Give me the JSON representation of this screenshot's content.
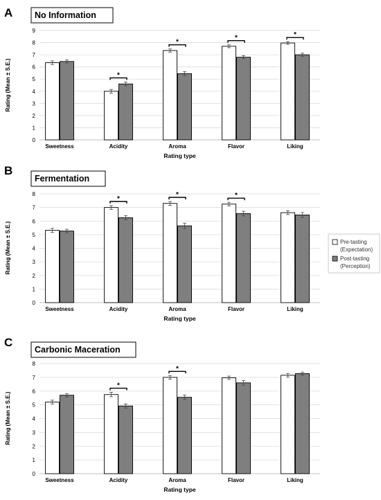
{
  "legend": {
    "items": [
      {
        "label_line1": "Pre-tasting",
        "label_line2": "(Expectation)",
        "color": "#ffffff"
      },
      {
        "label_line1": "Post-tasting",
        "label_line2": "(Perception)",
        "color": "#7f7f7f"
      }
    ]
  },
  "chart_data": [
    {
      "type": "bar",
      "panel": "A",
      "title": "No Information",
      "xlabel": "Rating type",
      "ylabel": "Rating (Mean ± S.E.)",
      "ylim": [
        0,
        9
      ],
      "yticks": [
        0,
        1,
        2,
        3,
        4,
        5,
        6,
        7,
        8,
        9
      ],
      "grid": true,
      "categories": [
        "Sweetness",
        "Acidity",
        "Aroma",
        "Flavor",
        "Liking"
      ],
      "series": [
        {
          "name": "Pre-tasting (Expectation)",
          "values": [
            6.35,
            4.0,
            7.35,
            7.7,
            7.97
          ],
          "se": [
            0.15,
            0.15,
            0.13,
            0.12,
            0.11
          ]
        },
        {
          "name": "Post-tasting (Perception)",
          "values": [
            6.45,
            4.6,
            5.45,
            6.8,
            7.0
          ],
          "se": [
            0.13,
            0.16,
            0.17,
            0.13,
            0.13
          ]
        }
      ],
      "significant": [
        false,
        true,
        true,
        true,
        true
      ],
      "significance_marker": "*"
    },
    {
      "type": "bar",
      "panel": "B",
      "title": "Fermentation",
      "xlabel": "Rating type",
      "ylabel": "Rating (Mean ± S.E.)",
      "ylim": [
        0,
        8
      ],
      "yticks": [
        0,
        1,
        2,
        3,
        4,
        5,
        6,
        7,
        8
      ],
      "grid": true,
      "categories": [
        "Sweetness",
        "Acidity",
        "Aroma",
        "Flavor",
        "Liking"
      ],
      "series": [
        {
          "name": "Pre-tasting (Expectation)",
          "values": [
            5.32,
            7.0,
            7.3,
            7.25,
            6.62
          ],
          "se": [
            0.15,
            0.14,
            0.14,
            0.13,
            0.14
          ]
        },
        {
          "name": "Post-tasting (Perception)",
          "values": [
            5.27,
            6.25,
            5.65,
            6.55,
            6.45
          ],
          "se": [
            0.13,
            0.15,
            0.2,
            0.17,
            0.18
          ]
        }
      ],
      "significant": [
        false,
        true,
        true,
        true,
        false
      ],
      "significance_marker": "*"
    },
    {
      "type": "bar",
      "panel": "C",
      "title": "Carbonic Maceration",
      "xlabel": "Rating type",
      "ylabel": "Rating (Mean ± S.E.)",
      "ylim": [
        0,
        8
      ],
      "yticks": [
        0,
        1,
        2,
        3,
        4,
        5,
        6,
        7,
        8
      ],
      "grid": true,
      "categories": [
        "Sweetness",
        "Acidity",
        "Aroma",
        "Flavor",
        "Liking"
      ],
      "series": [
        {
          "name": "Pre-tasting (Expectation)",
          "values": [
            5.2,
            5.75,
            7.0,
            6.97,
            7.15
          ],
          "se": [
            0.14,
            0.16,
            0.13,
            0.12,
            0.13
          ]
        },
        {
          "name": "Post-tasting (Perception)",
          "values": [
            5.7,
            4.92,
            5.55,
            6.6,
            7.27
          ],
          "se": [
            0.12,
            0.15,
            0.16,
            0.17,
            0.11
          ]
        }
      ],
      "significant": [
        false,
        true,
        true,
        false,
        false
      ],
      "significance_marker": "*"
    }
  ]
}
